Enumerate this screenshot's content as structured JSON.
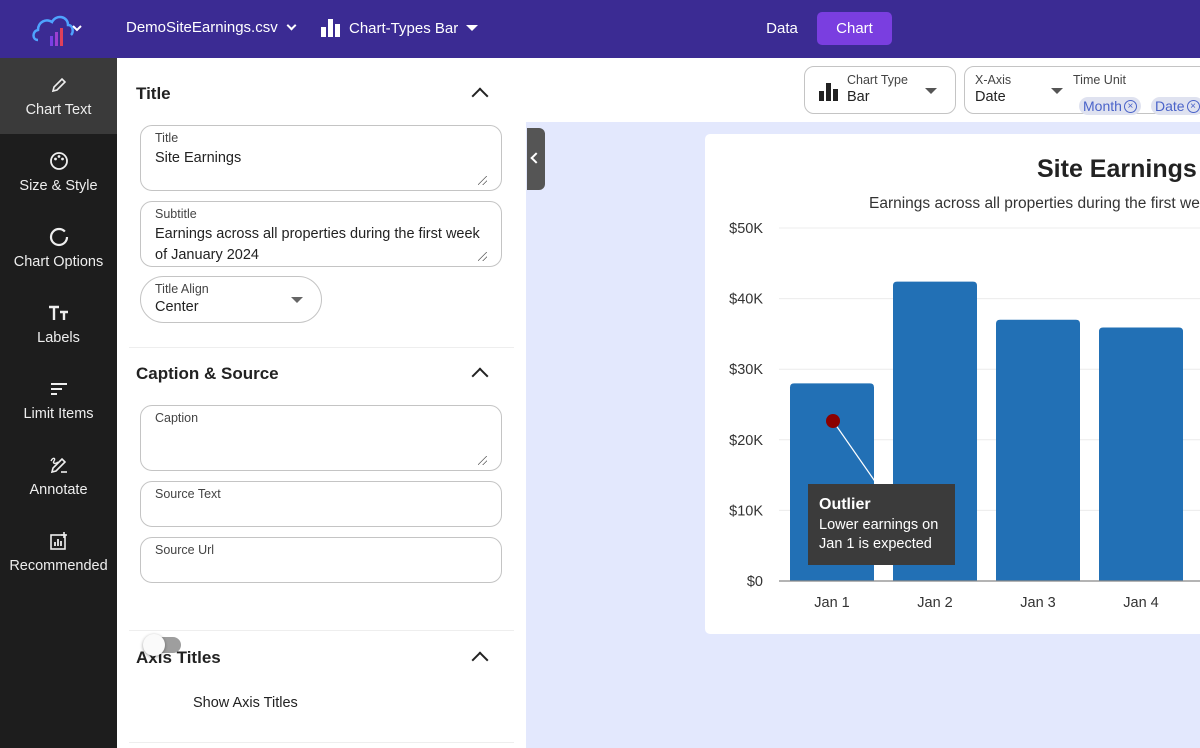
{
  "topbar": {
    "file_name": "DemoSiteEarnings.csv",
    "chart_type_label": "Chart-Types Bar",
    "nav_data": "Data",
    "nav_chart": "Chart",
    "accent_color": "#7a3ee0",
    "bar_color": "#3b2b93"
  },
  "sidebar": {
    "items": [
      {
        "label": "Chart Text",
        "icon": "pencil-icon"
      },
      {
        "label": "Size & Style",
        "icon": "palette-icon"
      },
      {
        "label": "Chart Options",
        "icon": "circle-icon"
      },
      {
        "label": "Labels",
        "icon": "text-size-icon"
      },
      {
        "label": "Limit Items",
        "icon": "filter-lines-icon"
      },
      {
        "label": "Annotate",
        "icon": "draw-icon"
      },
      {
        "label": "Recommended",
        "icon": "chart-plus-icon"
      }
    ]
  },
  "panel": {
    "title_section": {
      "heading": "Title",
      "title_label": "Title",
      "title_value": "Site Earnings",
      "subtitle_label": "Subtitle",
      "subtitle_value": "Earnings across all properties during the first week of January 2024",
      "align_label": "Title Align",
      "align_value": "Center"
    },
    "caption_section": {
      "heading": "Caption & Source",
      "caption_label": "Caption",
      "source_text_label": "Source Text",
      "source_url_label": "Source Url"
    },
    "axis_section": {
      "heading": "Axis Titles",
      "toggle_label": "Show Axis Titles"
    }
  },
  "toolbar": {
    "chart_type_label": "Chart Type",
    "chart_type_value": "Bar",
    "xaxis_label": "X-Axis",
    "xaxis_value": "Date",
    "time_unit_label": "Time Unit",
    "chips": [
      "Month",
      "Date"
    ]
  },
  "annotation": {
    "title": "Outlier",
    "line1": "Lower earnings on",
    "line2": "Jan 1 is expected",
    "point_color": "#8b0000"
  },
  "chart_data": {
    "type": "bar",
    "title": "Site Earnings",
    "subtitle": "Earnings across all properties during the first week of January 2024",
    "categories": [
      "Jan 1",
      "Jan 2",
      "Jan 3",
      "Jan 4"
    ],
    "values": [
      28000,
      42400,
      37000,
      35900
    ],
    "ylim": [
      0,
      50000
    ],
    "yticks": [
      0,
      10000,
      20000,
      30000,
      40000,
      50000
    ],
    "ytick_labels": [
      "$0",
      "$10K",
      "$20K",
      "$30K",
      "$40K",
      "$50K"
    ],
    "bar_color": "#2270b5",
    "grid": true
  }
}
